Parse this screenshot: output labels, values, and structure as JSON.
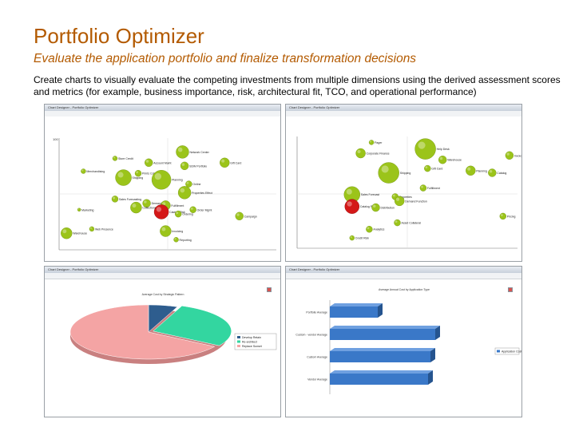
{
  "slide": {
    "title": "Portfolio Optimizer",
    "subtitle": "Evaluate the application portfolio and finalize transformation decisions",
    "description": "Create charts to visually evaluate the competing investments from multiple dimensions using the derived assessment scores and metrics (for example, business importance, risk, architectural fit, TCO, and operational performance)"
  },
  "window_title": "Chart Designer - Portfolio Optimizer",
  "colors": {
    "bubble_green": "#9bc41a",
    "bubble_red": "#d41818",
    "pie_pink": "#f4a4a4",
    "pie_teal": "#33d6a0",
    "pie_blue": "#2e5d8e",
    "bar_blue": "#3a78c8"
  },
  "chart_data": [
    {
      "type": "scatter",
      "variant": "bubble",
      "id": "bubble-left",
      "ytick_top": "100",
      "points": [
        {
          "label": "Network Center",
          "x": 0.57,
          "y": 0.9,
          "r": 8,
          "c": "g"
        },
        {
          "label": "Store Credit",
          "x": 0.25,
          "y": 0.84,
          "r": 3,
          "c": "g"
        },
        {
          "label": "Account Maint",
          "x": 0.41,
          "y": 0.8,
          "r": 5,
          "c": "g"
        },
        {
          "label": "SDW Portfolio",
          "x": 0.58,
          "y": 0.77,
          "r": 5,
          "c": "g"
        },
        {
          "label": "Prints Collation",
          "x": 0.36,
          "y": 0.7,
          "r": 4,
          "c": "g"
        },
        {
          "label": "Merchandising",
          "x": 0.1,
          "y": 0.72,
          "r": 3,
          "c": "g"
        },
        {
          "label": "Shipping",
          "x": 0.29,
          "y": 0.66,
          "r": 10,
          "c": "g"
        },
        {
          "label": "Planning",
          "x": 0.47,
          "y": 0.64,
          "r": 12,
          "c": "g"
        },
        {
          "label": "Online",
          "x": 0.6,
          "y": 0.6,
          "r": 4,
          "c": "g"
        },
        {
          "label": "Properties Effect",
          "x": 0.58,
          "y": 0.52,
          "r": 8,
          "c": "g"
        },
        {
          "label": "Sales Forecasting",
          "x": 0.25,
          "y": 0.46,
          "r": 4,
          "c": "g"
        },
        {
          "label": "Demand",
          "x": 0.4,
          "y": 0.42,
          "r": 5,
          "c": "g"
        },
        {
          "label": "Fulfillment",
          "x": 0.49,
          "y": 0.4,
          "r": 6,
          "c": "g"
        },
        {
          "label": "Catalog Risk",
          "x": 0.47,
          "y": 0.34,
          "r": 9,
          "c": "r"
        },
        {
          "label": "Ordering",
          "x": 0.55,
          "y": 0.32,
          "r": 4,
          "c": "g"
        },
        {
          "label": "Marketing",
          "x": 0.08,
          "y": 0.36,
          "r": 2,
          "c": "g"
        },
        {
          "label": "Order Mgmt",
          "x": 0.62,
          "y": 0.36,
          "r": 4,
          "c": "g"
        },
        {
          "label": "Collections",
          "x": 0.35,
          "y": 0.38,
          "r": 7,
          "c": "g"
        },
        {
          "label": "Campaign",
          "x": 0.84,
          "y": 0.3,
          "r": 5,
          "c": "g"
        },
        {
          "label": "Gift Card",
          "x": 0.77,
          "y": 0.8,
          "r": 6,
          "c": "g"
        },
        {
          "label": "Web Presence",
          "x": 0.14,
          "y": 0.18,
          "r": 3,
          "c": "g"
        },
        {
          "label": "Invoicing",
          "x": 0.49,
          "y": 0.16,
          "r": 7,
          "c": "g"
        },
        {
          "label": "Warehouse",
          "x": 0.02,
          "y": 0.14,
          "r": 7,
          "c": "g"
        },
        {
          "label": "Reporting",
          "x": 0.54,
          "y": 0.08,
          "r": 3,
          "c": "g"
        }
      ]
    },
    {
      "type": "scatter",
      "variant": "bubble",
      "id": "bubble-right",
      "points": [
        {
          "label": "Pager",
          "x": 0.33,
          "y": 0.96,
          "r": 3,
          "c": "g"
        },
        {
          "label": "Help Desk",
          "x": 0.58,
          "y": 0.9,
          "r": 13,
          "c": "g"
        },
        {
          "label": "Corporate Finance",
          "x": 0.28,
          "y": 0.86,
          "r": 6,
          "c": "g"
        },
        {
          "label": "Invoicing",
          "x": 0.97,
          "y": 0.84,
          "r": 5,
          "c": "g"
        },
        {
          "label": "Warehouse",
          "x": 0.66,
          "y": 0.8,
          "r": 5,
          "c": "g"
        },
        {
          "label": "Shipping",
          "x": 0.41,
          "y": 0.68,
          "r": 13,
          "c": "g"
        },
        {
          "label": "Gift Card",
          "x": 0.59,
          "y": 0.72,
          "r": 4,
          "c": "g"
        },
        {
          "label": "Planning",
          "x": 0.79,
          "y": 0.7,
          "r": 6,
          "c": "g"
        },
        {
          "label": "Catalog",
          "x": 0.89,
          "y": 0.68,
          "r": 5,
          "c": "g"
        },
        {
          "label": "Fulfillment",
          "x": 0.57,
          "y": 0.54,
          "r": 4,
          "c": "g"
        },
        {
          "label": "Sales Forecast",
          "x": 0.24,
          "y": 0.48,
          "r": 10,
          "c": "g"
        },
        {
          "label": "Properties",
          "x": 0.44,
          "y": 0.46,
          "r": 4,
          "c": "g"
        },
        {
          "label": "Demand Function",
          "x": 0.46,
          "y": 0.42,
          "r": 6,
          "c": "g"
        },
        {
          "label": "Catalog Risk",
          "x": 0.24,
          "y": 0.37,
          "r": 9,
          "c": "r"
        },
        {
          "label": "Distribution",
          "x": 0.35,
          "y": 0.36,
          "r": 5,
          "c": "g"
        },
        {
          "label": "Pricing",
          "x": 0.94,
          "y": 0.28,
          "r": 4,
          "c": "g"
        },
        {
          "label": "Asset Collateral",
          "x": 0.45,
          "y": 0.22,
          "r": 4,
          "c": "g"
        },
        {
          "label": "Analytics",
          "x": 0.32,
          "y": 0.16,
          "r": 4,
          "c": "g"
        },
        {
          "label": "Credit Risk",
          "x": 0.24,
          "y": 0.08,
          "r": 3,
          "c": "g"
        }
      ]
    },
    {
      "type": "pie",
      "id": "pie-bottom-left",
      "title": "Average Cost by Strategic Pattern",
      "slices": [
        {
          "label": "Sunset",
          "value": 6,
          "color": "#2e5d8e"
        },
        {
          "label": "Re-architect",
          "value": 28,
          "color": "#33d6a0"
        },
        {
          "label": "Retain",
          "value": 66,
          "color": "#f4a4a4"
        }
      ],
      "legend": [
        "Develop Retain",
        "Re-architect",
        "Replace Sunset"
      ]
    },
    {
      "type": "bar",
      "id": "bar-bottom-right",
      "orientation": "horizontal",
      "title": "Average Annual Cost by Application Type",
      "categories": [
        "Portfolio Average",
        "Custom - vendor Average",
        "Custom Average",
        "Vendor Average"
      ],
      "values": [
        40,
        88,
        84,
        82
      ],
      "legend": [
        "Application Cost"
      ]
    }
  ]
}
